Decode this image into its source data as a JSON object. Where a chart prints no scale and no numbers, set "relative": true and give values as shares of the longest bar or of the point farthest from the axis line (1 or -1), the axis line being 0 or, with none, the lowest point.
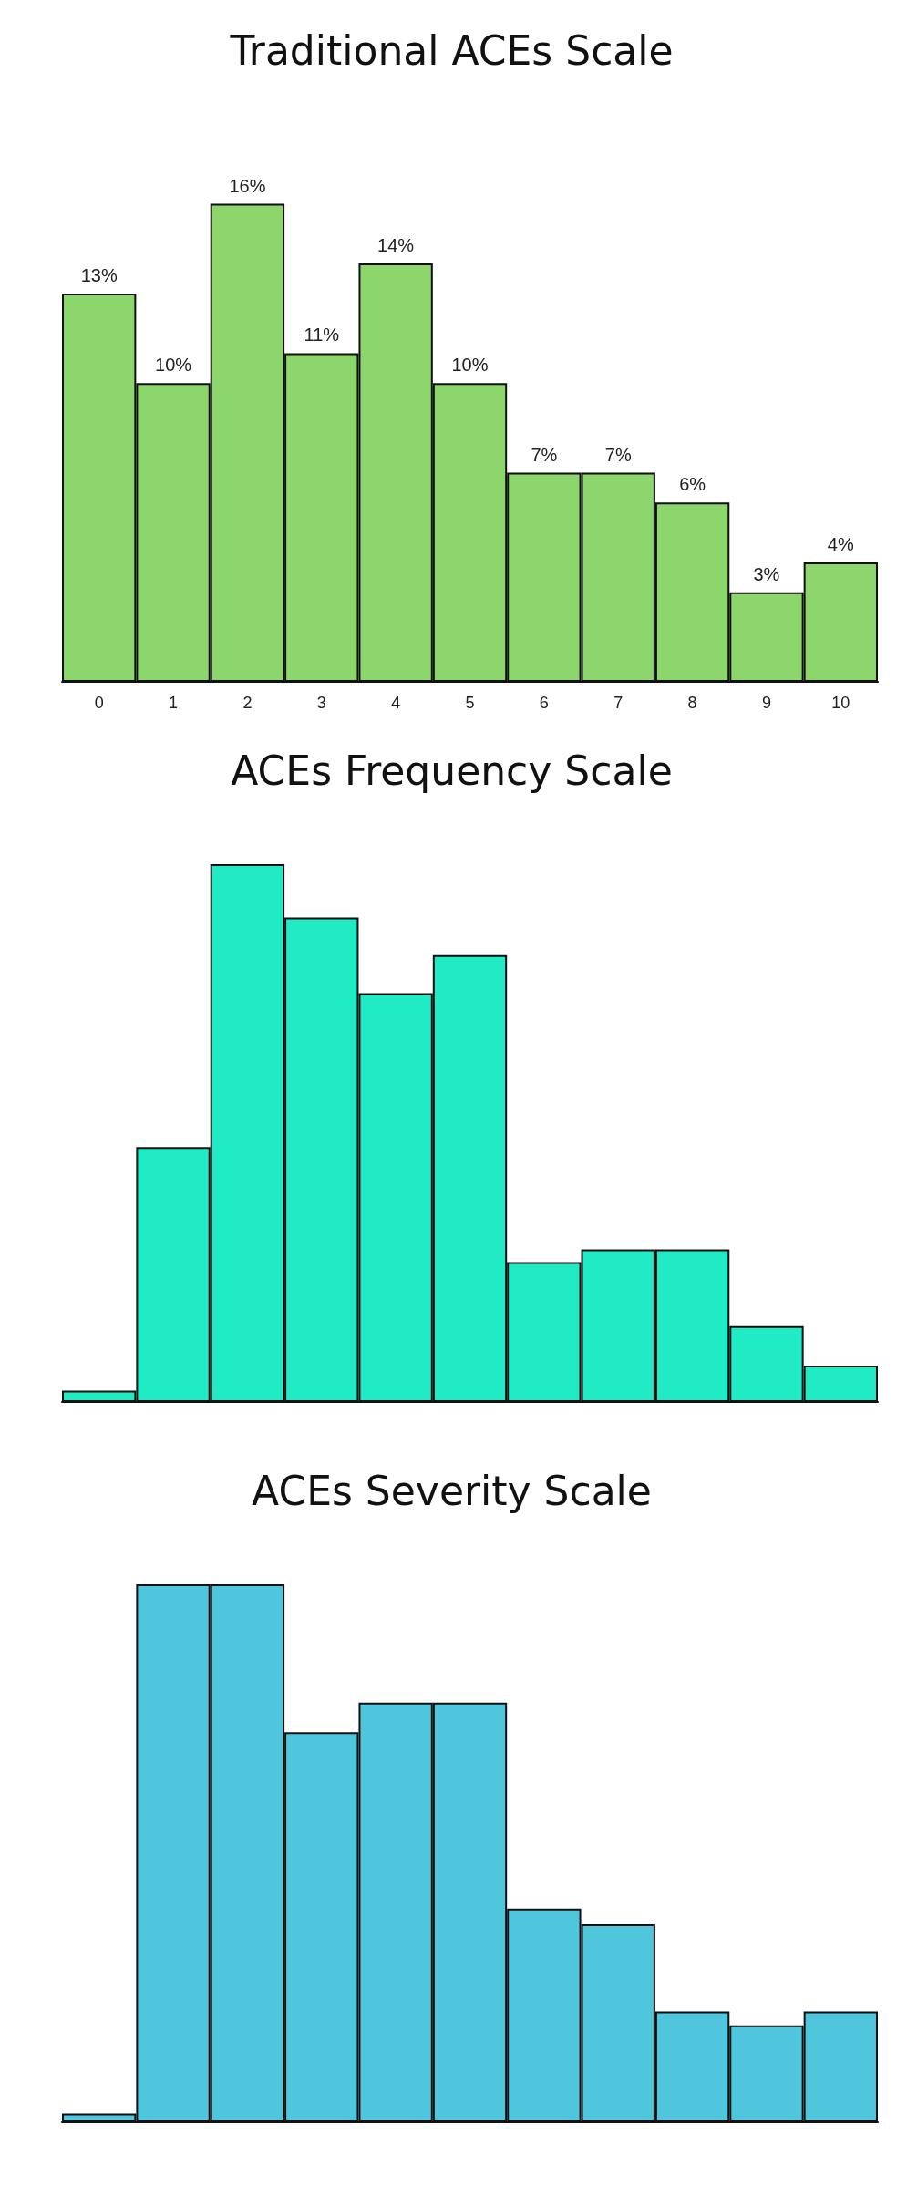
{
  "chart_data": [
    {
      "type": "bar",
      "title": "Traditional ACEs Scale",
      "categories": [
        "0",
        "1",
        "2",
        "3",
        "4",
        "5",
        "6",
        "7",
        "8",
        "9",
        "10"
      ],
      "values": [
        13,
        10,
        16,
        11,
        14,
        10,
        7,
        7,
        6,
        3,
        4
      ],
      "color": "#8cd66b",
      "value_labels": [
        "13%",
        "10%",
        "16%",
        "11%",
        "14%",
        "10%",
        "7%",
        "7%",
        "6%",
        "3%",
        "4%"
      ],
      "tick_labels": "x"
    },
    {
      "type": "bar",
      "title": "ACEs Frequency Scale",
      "categories": [
        null,
        null,
        null,
        null,
        null,
        null,
        null,
        null,
        null,
        null,
        null
      ],
      "values": [
        0.021,
        0.474,
        1,
        0.901,
        0.76,
        0.831,
        0.26,
        0.284,
        0.284,
        0.141,
        0.068
      ],
      "color": "#20ebc4",
      "relative": true,
      "tick_labels": false
    },
    {
      "type": "bar",
      "title": "ACEs Severity Scale",
      "categories": [
        null,
        null,
        null,
        null,
        null,
        null,
        null,
        null,
        null,
        null,
        null
      ],
      "values": [
        0.016,
        1,
        1,
        0.725,
        0.78,
        0.78,
        0.397,
        0.368,
        0.206,
        0.18,
        0.206
      ],
      "color": "#4fc6dc",
      "relative": true,
      "tick_labels": false
    }
  ]
}
